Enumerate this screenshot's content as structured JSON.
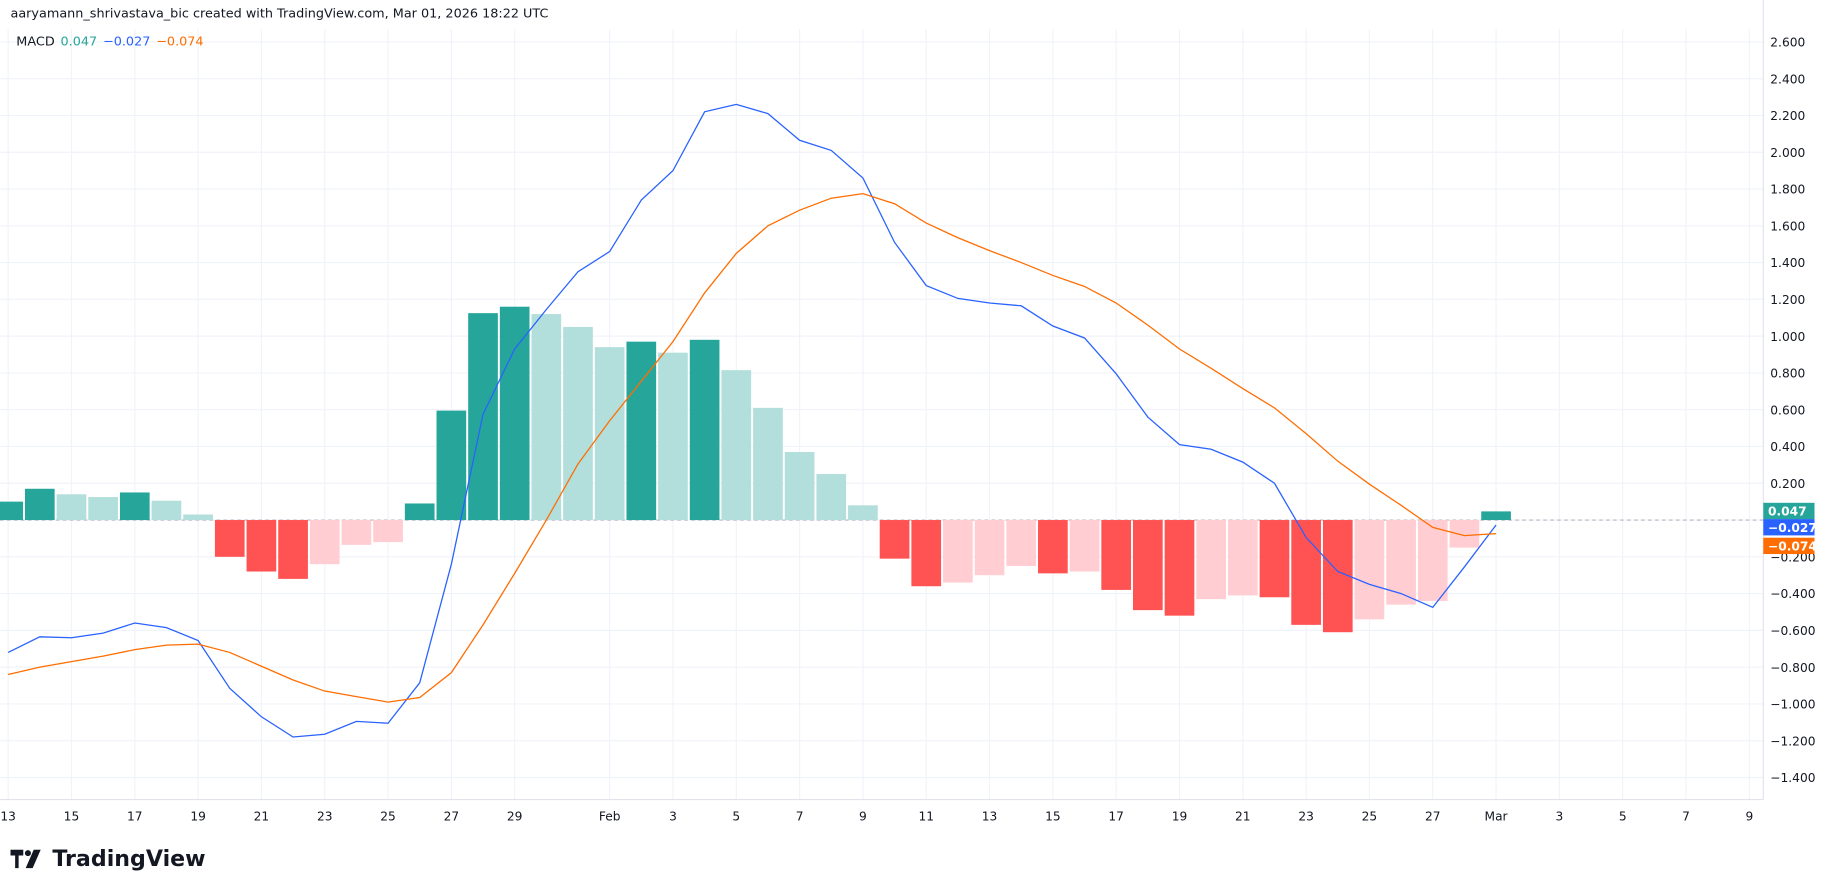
{
  "header": {
    "attribution": "aaryamann_shrivastava_bic created with TradingView.com, Mar 01, 2026 18:22 UTC"
  },
  "legend": {
    "name": "MACD",
    "histogram": "0.047",
    "macd": "−0.027",
    "signal": "−0.074"
  },
  "logo": {
    "text": "TradingView"
  },
  "colors": {
    "hist_up_strong": "#26a69a",
    "hist_up_weak": "#b2dfdb",
    "hist_down_strong": "#ff5252",
    "hist_down_weak": "#ffcdd2",
    "macd": "#2962ff",
    "signal": "#ff6d00",
    "grid": "#f0f3fa"
  },
  "chart_data": {
    "type": "bar+line",
    "title": "MACD",
    "start_date": "2026-01-13",
    "x_tick_labels": [
      {
        "label": "13",
        "date": "2026-01-13"
      },
      {
        "label": "15",
        "date": "2026-01-15"
      },
      {
        "label": "17",
        "date": "2026-01-17"
      },
      {
        "label": "19",
        "date": "2026-01-19"
      },
      {
        "label": "21",
        "date": "2026-01-21"
      },
      {
        "label": "23",
        "date": "2026-01-23"
      },
      {
        "label": "25",
        "date": "2026-01-25"
      },
      {
        "label": "27",
        "date": "2026-01-27"
      },
      {
        "label": "29",
        "date": "2026-01-29"
      },
      {
        "label": "Feb",
        "date": "2026-02-01"
      },
      {
        "label": "3",
        "date": "2026-02-03"
      },
      {
        "label": "5",
        "date": "2026-02-05"
      },
      {
        "label": "7",
        "date": "2026-02-07"
      },
      {
        "label": "9",
        "date": "2026-02-09"
      },
      {
        "label": "11",
        "date": "2026-02-11"
      },
      {
        "label": "13",
        "date": "2026-02-13"
      },
      {
        "label": "15",
        "date": "2026-02-15"
      },
      {
        "label": "17",
        "date": "2026-02-17"
      },
      {
        "label": "19",
        "date": "2026-02-19"
      },
      {
        "label": "21",
        "date": "2026-02-21"
      },
      {
        "label": "23",
        "date": "2026-02-23"
      },
      {
        "label": "25",
        "date": "2026-02-25"
      },
      {
        "label": "27",
        "date": "2026-02-27"
      },
      {
        "label": "Mar",
        "date": "2026-03-01"
      },
      {
        "label": "3",
        "date": "2026-03-03"
      },
      {
        "label": "5",
        "date": "2026-03-05"
      },
      {
        "label": "7",
        "date": "2026-03-07"
      },
      {
        "label": "9",
        "date": "2026-03-09"
      }
    ],
    "y_tick_labels": [
      "2.600",
      "2.400",
      "2.200",
      "2.000",
      "1.800",
      "1.600",
      "1.400",
      "1.200",
      "1.000",
      "0.800",
      "0.600",
      "0.400",
      "0.200",
      "−0.200",
      "−0.400",
      "−0.600",
      "−0.800",
      "−1.000",
      "−1.200",
      "−1.400"
    ],
    "ylim": [
      -1.4,
      2.6
    ],
    "grid": true,
    "series": [
      {
        "name": "Histogram",
        "type": "bar",
        "values": [
          0.1,
          0.17,
          0.14,
          0.125,
          0.15,
          0.105,
          0.03,
          -0.2,
          -0.28,
          -0.32,
          -0.24,
          -0.135,
          -0.12,
          0.09,
          0.595,
          1.125,
          1.16,
          1.12,
          1.05,
          0.94,
          0.97,
          0.91,
          0.98,
          0.815,
          0.61,
          0.37,
          0.25,
          0.08,
          -0.21,
          -0.36,
          -0.34,
          -0.3,
          -0.25,
          -0.29,
          -0.28,
          -0.38,
          -0.49,
          -0.52,
          -0.43,
          -0.41,
          -0.42,
          -0.57,
          -0.61,
          -0.54,
          -0.46,
          -0.44,
          -0.15,
          0.047
        ]
      },
      {
        "name": "MACD",
        "type": "line",
        "values": [
          -0.72,
          -0.635,
          -0.64,
          -0.615,
          -0.56,
          -0.585,
          -0.655,
          -0.915,
          -1.07,
          -1.18,
          -1.165,
          -1.095,
          -1.105,
          -0.885,
          -0.24,
          0.575,
          0.93,
          1.145,
          1.35,
          1.46,
          1.74,
          1.9,
          2.22,
          2.26,
          2.21,
          2.065,
          2.01,
          1.86,
          1.51,
          1.275,
          1.205,
          1.18,
          1.165,
          1.055,
          0.99,
          0.795,
          0.56,
          0.41,
          0.385,
          0.315,
          0.2,
          -0.095,
          -0.28,
          -0.35,
          -0.4,
          -0.475,
          -0.255,
          -0.027
        ]
      },
      {
        "name": "Signal",
        "type": "line",
        "values": [
          -0.84,
          -0.8,
          -0.77,
          -0.74,
          -0.705,
          -0.68,
          -0.675,
          -0.72,
          -0.795,
          -0.87,
          -0.93,
          -0.96,
          -0.99,
          -0.965,
          -0.83,
          -0.57,
          -0.29,
          0.0,
          0.305,
          0.54,
          0.755,
          0.97,
          1.235,
          1.45,
          1.6,
          1.685,
          1.75,
          1.775,
          1.72,
          1.615,
          1.535,
          1.465,
          1.4,
          1.33,
          1.27,
          1.18,
          1.06,
          0.93,
          0.825,
          0.715,
          0.61,
          0.47,
          0.32,
          0.195,
          0.08,
          -0.04,
          -0.085,
          -0.074
        ]
      }
    ],
    "last_value_labels": {
      "histogram": "0.047",
      "macd": "−0.027",
      "signal": "−0.074"
    }
  }
}
